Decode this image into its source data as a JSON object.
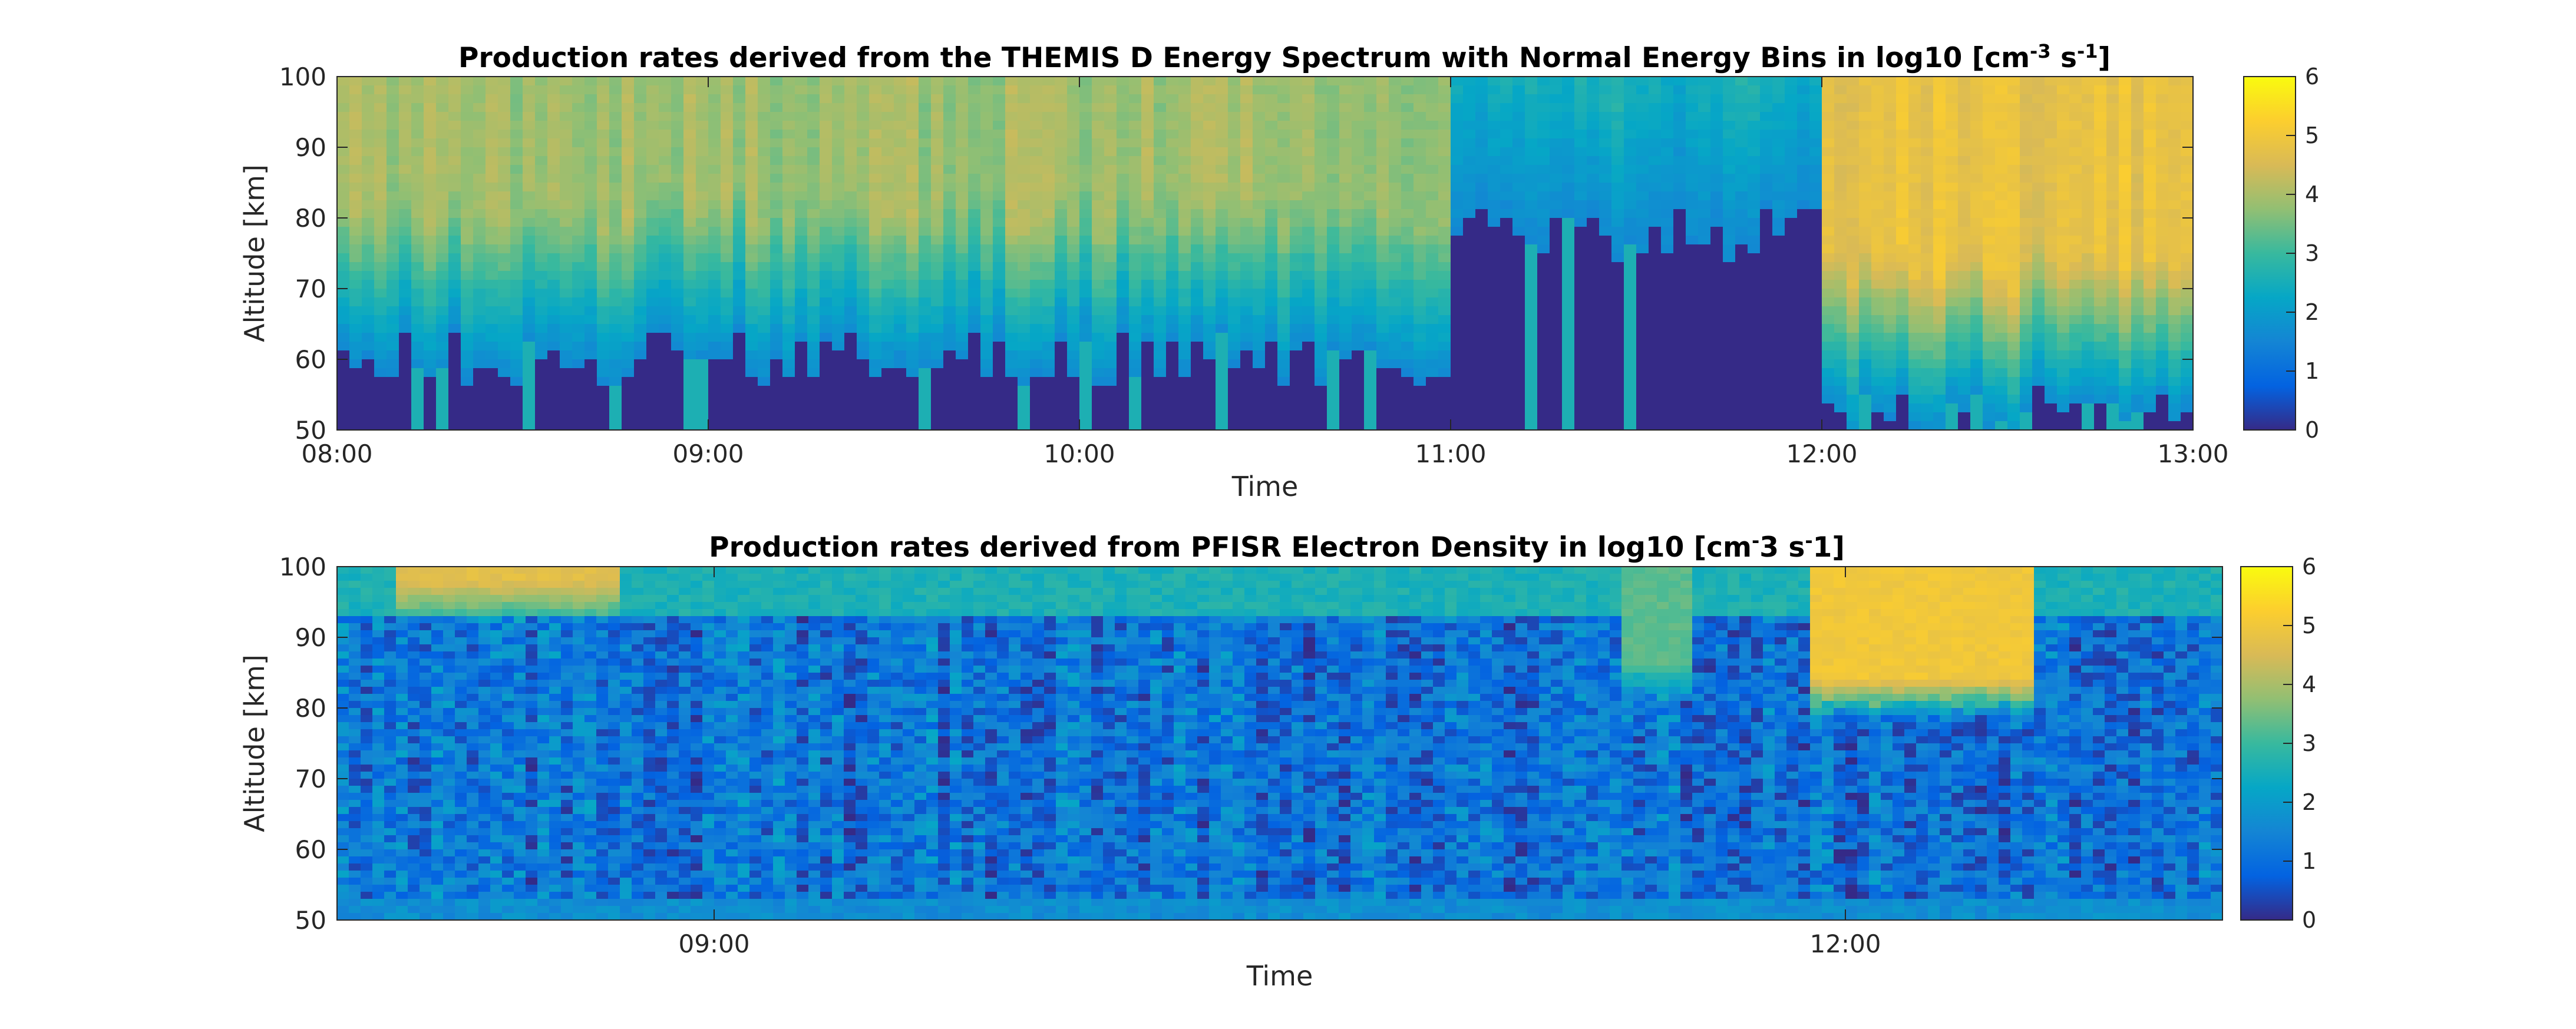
{
  "figure": {
    "colormap": "parula"
  },
  "chart_data": [
    {
      "type": "heatmap",
      "title_parts": {
        "main": "Production rates derived from the THEMIS D Energy Spectrum with Normal Energy Bins in log10 [cm",
        "sup1": "-3",
        "mid": " s",
        "sup2": "-1",
        "end": "]"
      },
      "title": "Production rates derived from the THEMIS D Energy Spectrum with Normal Energy Bins in log10 [cm-3 s-1]",
      "xlabel": "Time",
      "ylabel": "Altitude [km]",
      "x_range": [
        "08:00",
        "13:00"
      ],
      "x_ticks": [
        "08:00",
        "09:00",
        "10:00",
        "11:00",
        "12:00",
        "13:00"
      ],
      "y_range": [
        50,
        100
      ],
      "y_ticks": [
        50,
        60,
        70,
        80,
        90,
        100
      ],
      "colorbar": {
        "range": [
          0,
          6
        ],
        "ticks": [
          0,
          1,
          2,
          3,
          4,
          5,
          6
        ]
      },
      "features": [
        {
          "time_range": [
            "08:00",
            "11:00"
          ],
          "value_at_top": 3.9,
          "lower_cutoff_km": 60,
          "description": "green-yellow band above ~75 km, teal transitional layer, dark (0) below cutoff with intermittent teal spikes"
        },
        {
          "time_range": [
            "11:00",
            "12:00"
          ],
          "value_at_top": 2.5,
          "lower_cutoff_km": 78,
          "description": "gap region: mostly dark with scattered blue/teal columns"
        },
        {
          "time_range": [
            "12:00",
            "13:00"
          ],
          "value_at_top": 4.8,
          "lower_cutoff_km": 52,
          "description": "strong orange production above ~80 km extending to low altitude"
        }
      ]
    },
    {
      "type": "heatmap",
      "title_parts": {
        "main": "Production rates derived from PFISR Electron Density in log10 [cm",
        "sup1": "-",
        "mid": "3 s",
        "sup2": "-",
        "end": "1]"
      },
      "title": "Production rates derived from PFISR Electron Density in log10 [cm-3 s-1]",
      "xlabel": "Time",
      "ylabel": "Altitude [km]",
      "x_ticks": [
        "09:00",
        "12:00"
      ],
      "y_range": [
        50,
        100
      ],
      "y_ticks": [
        50,
        60,
        70,
        80,
        90,
        100
      ],
      "colorbar": {
        "range": [
          0,
          6
        ],
        "ticks": [
          0,
          1,
          2,
          3,
          4,
          5,
          6
        ]
      },
      "features": [
        {
          "time_range": [
            "08:10",
            "08:45"
          ],
          "altitude_range": [
            92,
            100
          ],
          "value": 4.7,
          "description": "orange patch near top"
        },
        {
          "time_range": [
            "11:25",
            "11:35"
          ],
          "altitude_range": [
            80,
            100
          ],
          "value": 3.3,
          "description": "green column"
        },
        {
          "time_range": [
            "11:55",
            "12:30"
          ],
          "altitude_range": [
            78,
            100
          ],
          "value": 5.0,
          "description": "strong orange-yellow burst"
        },
        {
          "time_range": [
            "08:00",
            "13:00"
          ],
          "altitude_range": [
            50,
            90
          ],
          "value": 1.2,
          "description": "noisy blue background (0.3–2)"
        }
      ]
    }
  ]
}
